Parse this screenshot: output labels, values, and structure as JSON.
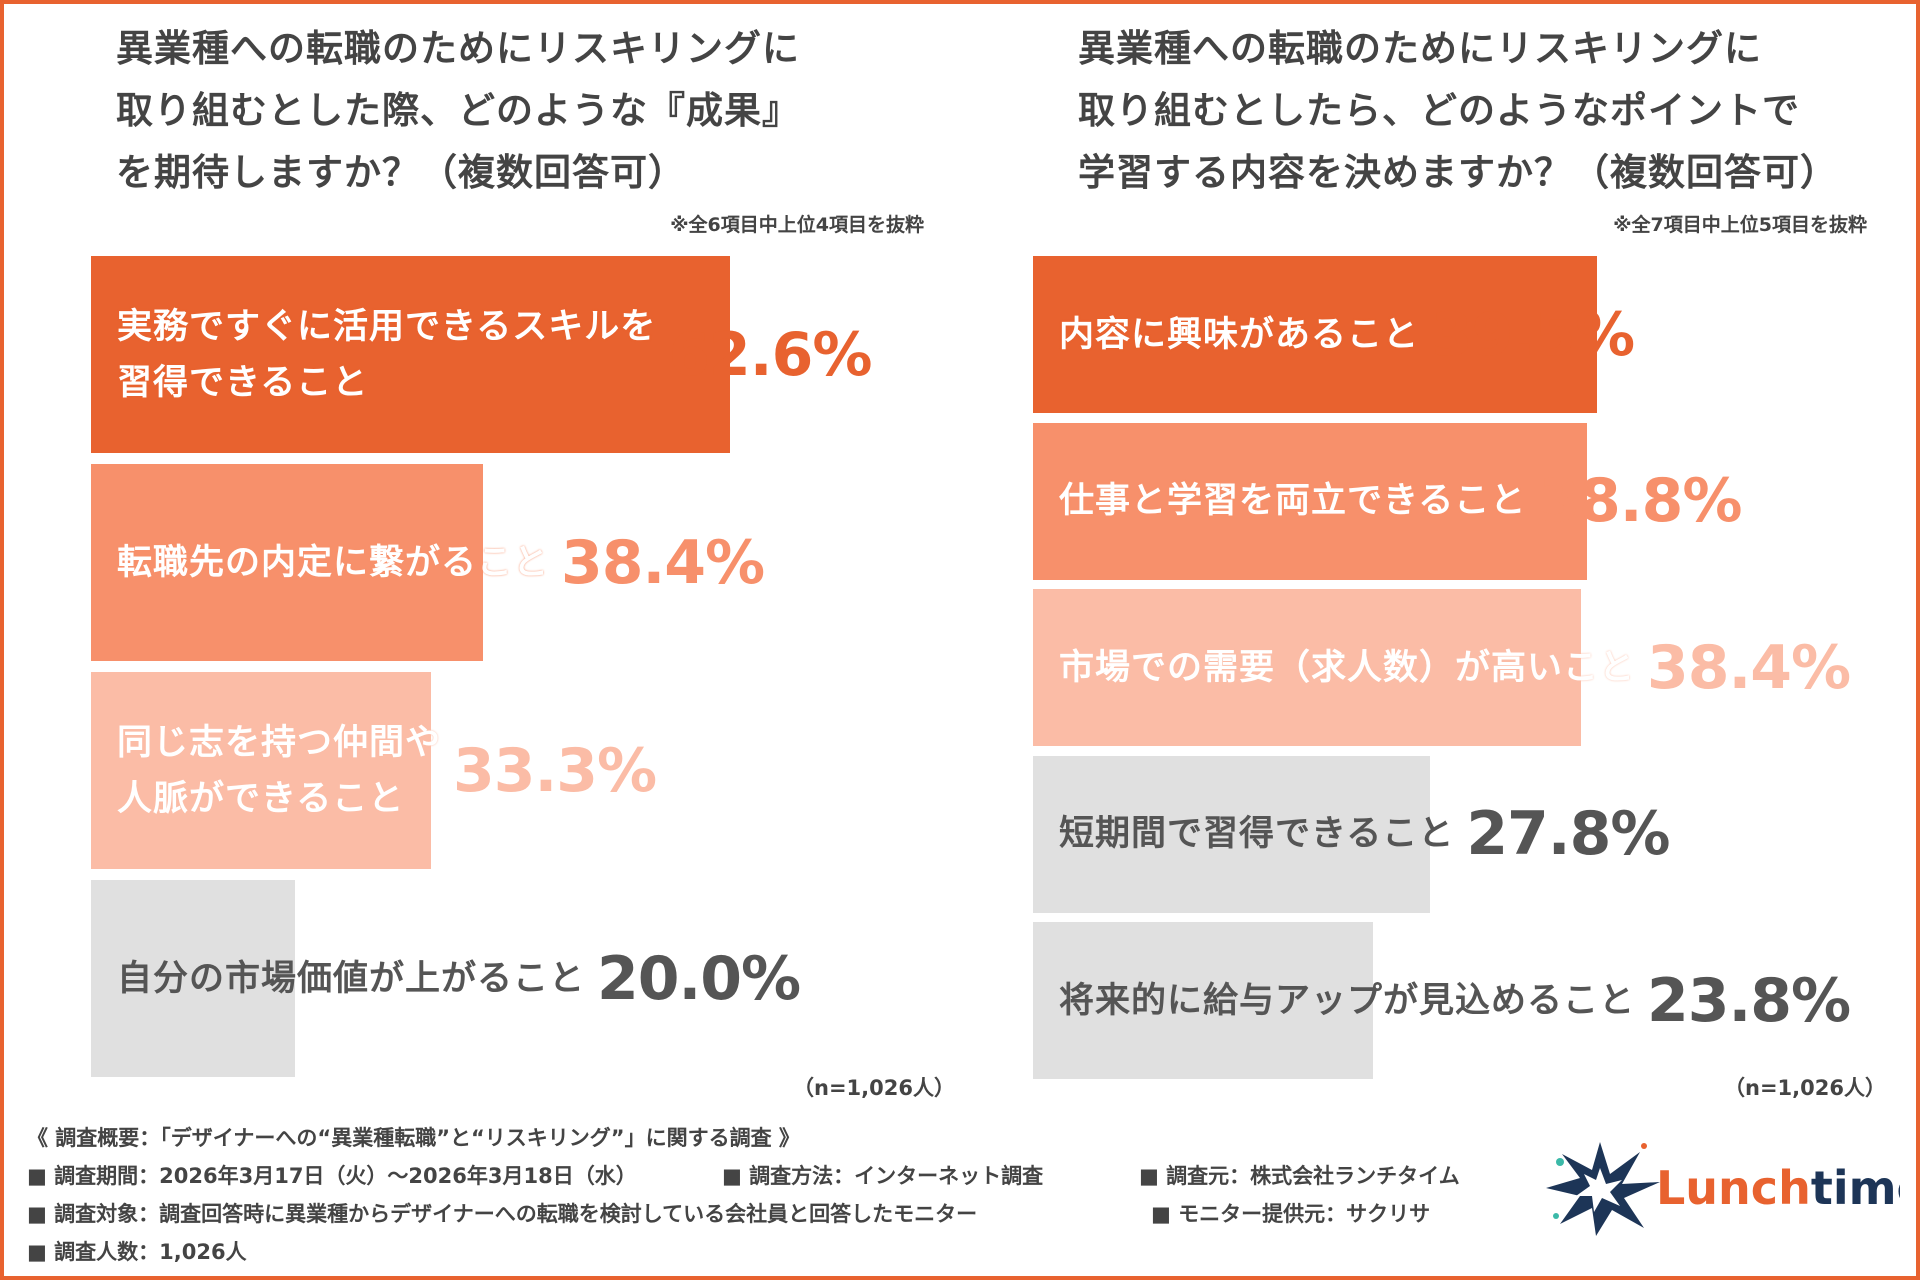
{
  "chart_data": [
    {
      "type": "bar",
      "orientation": "horizontal",
      "title": "異業種への転職のためにリスキリングに\n取り組むとした際、どのような『成果』\nを期待しますか？（複数回答可）",
      "note": "※全6項目中上位4項目を抜粋",
      "sample": "（n=1,026人）",
      "categories": [
        "実務ですぐに活用できるスキルを\n習得できること",
        "転職先の内定に繋がること",
        "同じ志を持つ仲間や\n人脈ができること",
        "自分の市場価値が上がること"
      ],
      "values": [
        62.6,
        38.4,
        33.3,
        20.0
      ],
      "value_labels": [
        "62.6%",
        "38.4%",
        "33.3%",
        "20.0%"
      ],
      "colors": [
        "#e8622f",
        "#f7906b",
        "#fbbca6",
        "#e0e0e0"
      ]
    },
    {
      "type": "bar",
      "orientation": "horizontal",
      "title": "異業種への転職のためにリスキリングに\n取り組むとしたら、どのようなポイントで\n学習する内容を決めますか？（複数回答可）",
      "note": "※全7項目中上位5項目を抜粋",
      "sample": "（n=1,026人）",
      "categories": [
        "内容に興味があること",
        "仕事と学習を両立できること",
        "市場での需要（求人数）が高いこと",
        "短期間で習得できること",
        "将来的に給与アップが見込めること"
      ],
      "values": [
        39.5,
        38.8,
        38.4,
        27.8,
        23.8
      ],
      "value_labels": [
        "39.5%",
        "38.8%",
        "38.4%",
        "27.8%",
        "23.8%"
      ],
      "colors": [
        "#e8622f",
        "#f7906b",
        "#fbbca6",
        "#e0e0e0",
        "#e0e0e0"
      ]
    }
  ],
  "footer": {
    "heading": "《 調査概要：「デザイナーへの“異業種転職”と“リスキリング”」に関する調査 》",
    "items": [
      "■ 調査期間：2026年3月17日（火）～2026年3月18日（水）",
      "■ 調査方法：インターネット調査",
      "■ 調査元：株式会社ランチタイム",
      "■ 調査対象：調査回答時に異業種からデザイナーへの転職を検討している会社員と回答したモニター",
      "■ モニター提供元：サクリサ",
      "■ 調査人数：1,026人"
    ],
    "logo": [
      "Lunch",
      "time"
    ]
  }
}
